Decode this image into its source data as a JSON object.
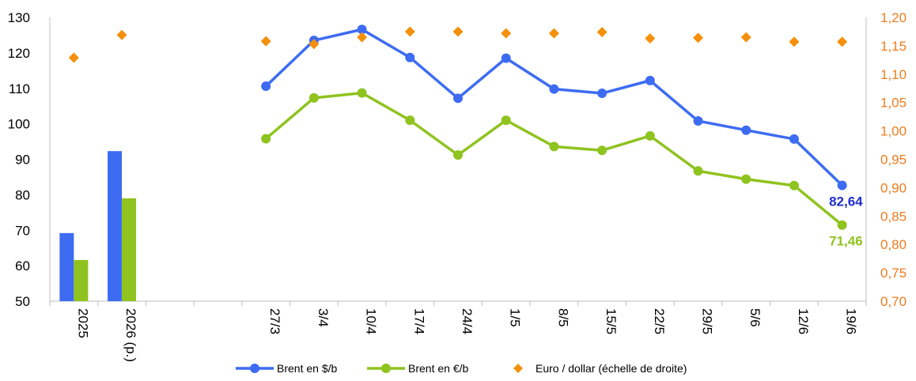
{
  "chart_data": {
    "type": "bar",
    "categories": [
      "2025",
      "2026 (p.)",
      "",
      "",
      "27/3",
      "3/4",
      "10/4",
      "17/4",
      "24/4",
      "1/5",
      "8/5",
      "15/5",
      "22/5",
      "29/5",
      "5/6",
      "12/6",
      "19/6"
    ],
    "annual_bars": {
      "categories": [
        "2025",
        "2026 (p.)"
      ],
      "series": [
        {
          "name": "Brent en $/b",
          "values": [
            69.2,
            92.3
          ]
        },
        {
          "name": "Brent en €/b",
          "values": [
            61.6,
            79.0
          ]
        }
      ]
    },
    "weekly": {
      "categories": [
        "27/3",
        "3/4",
        "10/4",
        "17/4",
        "24/4",
        "1/5",
        "8/5",
        "15/5",
        "22/5",
        "29/5",
        "5/6",
        "12/6",
        "19/6"
      ],
      "series": [
        {
          "name": "Brent en $/b",
          "type": "line",
          "axis": "left",
          "values": [
            110.6,
            123.5,
            126.6,
            118.7,
            107.2,
            118.5,
            109.8,
            108.6,
            112.2,
            100.8,
            98.2,
            95.7,
            82.64
          ]
        },
        {
          "name": "Brent en €/b",
          "type": "line",
          "axis": "left",
          "values": [
            95.8,
            107.3,
            108.7,
            101.0,
            91.2,
            101.0,
            93.6,
            92.5,
            96.6,
            86.7,
            84.4,
            82.6,
            71.46
          ]
        }
      ]
    },
    "fx_series": {
      "name": "Euro / dollar (échelle de droite)",
      "type": "scatter",
      "axis": "right",
      "categories": [
        "2025",
        "2026 (p.)",
        "27/3",
        "3/4",
        "10/4",
        "17/4",
        "24/4",
        "1/5",
        "8/5",
        "15/5",
        "22/5",
        "29/5",
        "5/6",
        "12/6",
        "19/6"
      ],
      "values": [
        1.129,
        1.169,
        1.158,
        1.153,
        1.165,
        1.175,
        1.175,
        1.172,
        1.172,
        1.174,
        1.163,
        1.164,
        1.165,
        1.157,
        1.157
      ]
    },
    "left_axis": {
      "ylim": [
        50,
        130
      ],
      "ticks": [
        "50",
        "60",
        "70",
        "80",
        "90",
        "100",
        "110",
        "120",
        "130"
      ]
    },
    "right_axis": {
      "ylim": [
        0.7,
        1.2
      ],
      "ticks": [
        "0,70",
        "0,75",
        "0,80",
        "0,85",
        "0,90",
        "0,95",
        "1,00",
        "1,05",
        "1,10",
        "1,15",
        "1,20"
      ]
    },
    "annotations": [
      {
        "text": "82,64",
        "series": "Brent en $/b"
      },
      {
        "text": "71,46",
        "series": "Brent en €/b"
      }
    ],
    "legend": {
      "position": "bottom",
      "entries": [
        "Brent en $/b",
        "Brent en €/b",
        "Euro / dollar (échelle de droite)"
      ]
    },
    "colors": {
      "usd": "#3d6cf2",
      "eur": "#8fc31f",
      "fx": "#f4900c",
      "right_axis_text": "#f07c1e",
      "annotation_usd": "#1f2fd0",
      "annotation_eur": "#8fc31f"
    },
    "grid": false
  }
}
